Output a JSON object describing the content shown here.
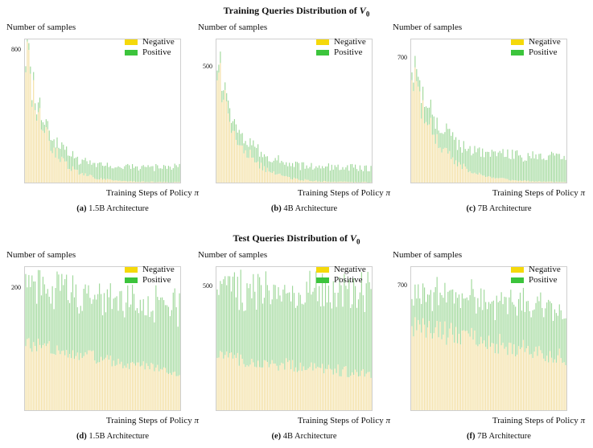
{
  "titles": {
    "train": {
      "prefix": "Training Queries Distribution of ",
      "var": "V",
      "sub": "0"
    },
    "test": {
      "prefix": "Test Queries Distribution of ",
      "var": "V",
      "sub": "0"
    }
  },
  "colors": {
    "negative": "#f5d90a",
    "positive": "#3cc43c",
    "negative_bar": "#f3dfa2",
    "positive_bar": "#9fd89a"
  },
  "chart_data": [
    {
      "id": "a",
      "group": "train",
      "type": "bar",
      "stacked": true,
      "n_bars": 100,
      "label": "(a)",
      "caption": "1.5B Architecture",
      "ylabel": "Number of samples",
      "xlabel": "Training Steps of Policy π",
      "ytick": "800",
      "ytick_value": 800,
      "ylim": [
        0,
        870
      ],
      "series": [
        {
          "name": "Negative",
          "shape": "decay",
          "start": 780,
          "end": 12,
          "rate": 0.075,
          "noise": 0.22
        },
        {
          "name": "Positive",
          "shape": "decay",
          "start": 30,
          "end": 88,
          "rate": 0.05,
          "noise": 0.25
        }
      ],
      "legend": [
        "Negative",
        "Positive"
      ]
    },
    {
      "id": "b",
      "group": "train",
      "type": "bar",
      "stacked": true,
      "n_bars": 100,
      "label": "(b)",
      "caption": "4B Architecture",
      "ylabel": "Number of samples",
      "xlabel": "Training Steps of Policy π",
      "ytick": "500",
      "ytick_value": 500,
      "ylim": [
        0,
        620
      ],
      "series": [
        {
          "name": "Negative",
          "shape": "decay",
          "start": 500,
          "end": 8,
          "rate": 0.07,
          "noise": 0.22
        },
        {
          "name": "Positive",
          "shape": "decay",
          "start": 40,
          "end": 65,
          "rate": 0.05,
          "noise": 0.3
        }
      ],
      "legend": [
        "Negative",
        "Positive"
      ]
    },
    {
      "id": "c",
      "group": "train",
      "type": "bar",
      "stacked": true,
      "n_bars": 100,
      "label": "(c)",
      "caption": "7B Architecture",
      "ylabel": "Number of samples",
      "xlabel": "Training Steps of Policy π",
      "ytick": "700",
      "ytick_value": 700,
      "ylim": [
        0,
        810
      ],
      "series": [
        {
          "name": "Negative",
          "shape": "decay",
          "start": 630,
          "end": 10,
          "rate": 0.06,
          "noise": 0.2
        },
        {
          "name": "Positive",
          "shape": "decay",
          "start": 50,
          "end": 140,
          "rate": 0.05,
          "noise": 0.25
        }
      ],
      "legend": [
        "Negative",
        "Positive"
      ]
    },
    {
      "id": "d",
      "group": "test",
      "type": "bar",
      "stacked": true,
      "n_bars": 100,
      "label": "(d)",
      "caption": "1.5B Architecture",
      "ylabel": "Number of samples",
      "xlabel": "Training Steps of Policy π",
      "ytick": "200",
      "ytick_value": 200,
      "ylim": [
        0,
        235
      ],
      "series": [
        {
          "name": "Negative",
          "shape": "flat",
          "start": 110,
          "end": 62,
          "rate": 0.08,
          "noise": 0.12
        },
        {
          "name": "Positive",
          "shape": "flat",
          "start": 95,
          "end": 105,
          "rate": 0.05,
          "noise": 0.3
        }
      ],
      "legend": [
        "Negative",
        "Positive"
      ]
    },
    {
      "id": "e",
      "group": "test",
      "type": "bar",
      "stacked": true,
      "n_bars": 100,
      "label": "(e)",
      "caption": "4B Architecture",
      "ylabel": "Number of samples",
      "xlabel": "Training Steps of Policy π",
      "ytick": "500",
      "ytick_value": 500,
      "ylim": [
        0,
        580
      ],
      "series": [
        {
          "name": "Negative",
          "shape": "flat",
          "start": 220,
          "end": 150,
          "rate": 0.06,
          "noise": 0.15
        },
        {
          "name": "Positive",
          "shape": "flat",
          "start": 270,
          "end": 340,
          "rate": 0.05,
          "noise": 0.25
        }
      ],
      "legend": [
        "Negative",
        "Positive"
      ]
    },
    {
      "id": "f",
      "group": "test",
      "type": "bar",
      "stacked": true,
      "n_bars": 100,
      "label": "(f)",
      "caption": "7B Architecture",
      "ylabel": "Number of samples",
      "xlabel": "Training Steps of Policy π",
      "ytick": "700",
      "ytick_value": 700,
      "ylim": [
        0,
        810
      ],
      "series": [
        {
          "name": "Negative",
          "shape": "flat",
          "start": 480,
          "end": 300,
          "rate": 0.06,
          "noise": 0.15
        },
        {
          "name": "Positive",
          "shape": "flat",
          "start": 180,
          "end": 300,
          "rate": 0.05,
          "noise": 0.25
        }
      ],
      "legend": [
        "Negative",
        "Positive"
      ]
    }
  ]
}
